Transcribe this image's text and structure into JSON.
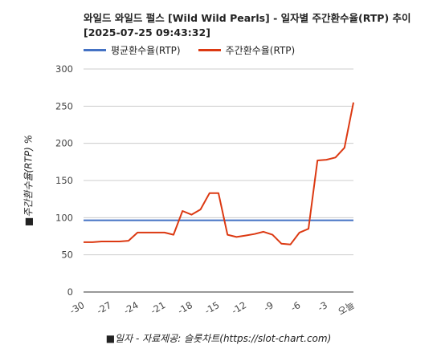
{
  "chart_data": {
    "type": "line",
    "title": "와일드 와일드 펄스 [Wild Wild Pearls] - 일자별 주간환수율(RTP) 추이 [2025-07-25 09:43:32]",
    "ylabel": "■주간환수율(RTP) %",
    "xlabel": "■일자 - 자료제공: 슬롯차트(https://slot-chart.com)",
    "ylim": [
      0,
      300
    ],
    "yticks": [
      0,
      50,
      100,
      150,
      200,
      250,
      300
    ],
    "xlim": [
      -30,
      0
    ],
    "xticks": [
      {
        "value": -30,
        "label": "-30"
      },
      {
        "value": -27,
        "label": "-27"
      },
      {
        "value": -24,
        "label": "-24"
      },
      {
        "value": -21,
        "label": "-21"
      },
      {
        "value": -18,
        "label": "-18"
      },
      {
        "value": -15,
        "label": "-15"
      },
      {
        "value": -12,
        "label": "-12"
      },
      {
        "value": -9,
        "label": "-9"
      },
      {
        "value": -6,
        "label": "-6"
      },
      {
        "value": -3,
        "label": "-3"
      },
      {
        "value": 0,
        "label": "오늘"
      }
    ],
    "grid": true,
    "legend_position": "top-left",
    "series": [
      {
        "name": "평균환수율(RTP)",
        "color": "#4472c4",
        "x": [
          -30,
          0
        ],
        "values": [
          96.5,
          96.5
        ]
      },
      {
        "name": "주간환수율(RTP)",
        "color": "#dc3912",
        "x": [
          -30,
          -29,
          -28,
          -27,
          -26,
          -25,
          -24,
          -23,
          -22,
          -21,
          -20,
          -19,
          -18,
          -17,
          -16,
          -15,
          -14,
          -13,
          -12,
          -11,
          -10,
          -9,
          -8,
          -7,
          -6,
          -5,
          -4,
          -3,
          -2,
          -1,
          0
        ],
        "values": [
          67,
          67,
          68,
          68,
          68,
          69,
          80,
          80,
          80,
          80,
          77,
          109,
          104,
          111,
          133,
          133,
          77,
          74,
          76,
          78,
          81,
          77,
          65,
          64,
          80,
          85,
          177,
          178,
          181,
          194,
          255
        ]
      }
    ]
  }
}
